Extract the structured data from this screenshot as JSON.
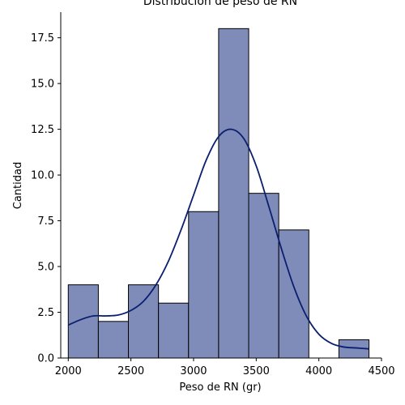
{
  "chart_data": {
    "type": "bar",
    "subtype": "histogram_with_kde",
    "title": "Distribución de peso de RN",
    "xlabel": "Peso de RN (gr)",
    "ylabel": "Cantidad",
    "xlim": [
      1940,
      4500
    ],
    "ylim": [
      0,
      18.9
    ],
    "x_ticks": [
      2000,
      2500,
      3000,
      3500,
      4000,
      4500
    ],
    "x_tick_labels": [
      "2000",
      "2500",
      "3000",
      "3500",
      "4000",
      "4500"
    ],
    "y_ticks": [
      0,
      2.5,
      5.0,
      7.5,
      10.0,
      12.5,
      15.0,
      17.5
    ],
    "y_tick_labels": [
      "0.0",
      "2.5",
      "5.0",
      "7.5",
      "10.0",
      "12.5",
      "15.0",
      "17.5"
    ],
    "bins": [
      {
        "x0": 2000,
        "x1": 2240,
        "count": 4
      },
      {
        "x0": 2240,
        "x1": 2480,
        "count": 2
      },
      {
        "x0": 2480,
        "x1": 2720,
        "count": 4
      },
      {
        "x0": 2720,
        "x1": 2960,
        "count": 3
      },
      {
        "x0": 2960,
        "x1": 3200,
        "count": 8
      },
      {
        "x0": 3200,
        "x1": 3440,
        "count": 18
      },
      {
        "x0": 3440,
        "x1": 3680,
        "count": 9
      },
      {
        "x0": 3680,
        "x1": 3920,
        "count": 7
      },
      {
        "x0": 3920,
        "x1": 4160,
        "count": 0
      },
      {
        "x0": 4160,
        "x1": 4400,
        "count": 1
      }
    ],
    "kde": {
      "x": [
        2000,
        2100,
        2200,
        2300,
        2400,
        2500,
        2600,
        2700,
        2800,
        2900,
        3000,
        3100,
        3200,
        3300,
        3400,
        3500,
        3600,
        3700,
        3800,
        3900,
        4000,
        4100,
        4200,
        4300,
        4400
      ],
      "y": [
        1.8,
        2.1,
        2.3,
        2.3,
        2.35,
        2.6,
        3.1,
        4.0,
        5.3,
        7.0,
        8.9,
        10.8,
        12.1,
        12.5,
        12.0,
        10.5,
        8.3,
        6.0,
        3.9,
        2.3,
        1.3,
        0.8,
        0.6,
        0.55,
        0.5
      ]
    },
    "grid": false,
    "colors": {
      "bar_fill": "#7F8CBA",
      "bar_edge": "#000000",
      "kde_line": "#0A1F6E"
    }
  }
}
